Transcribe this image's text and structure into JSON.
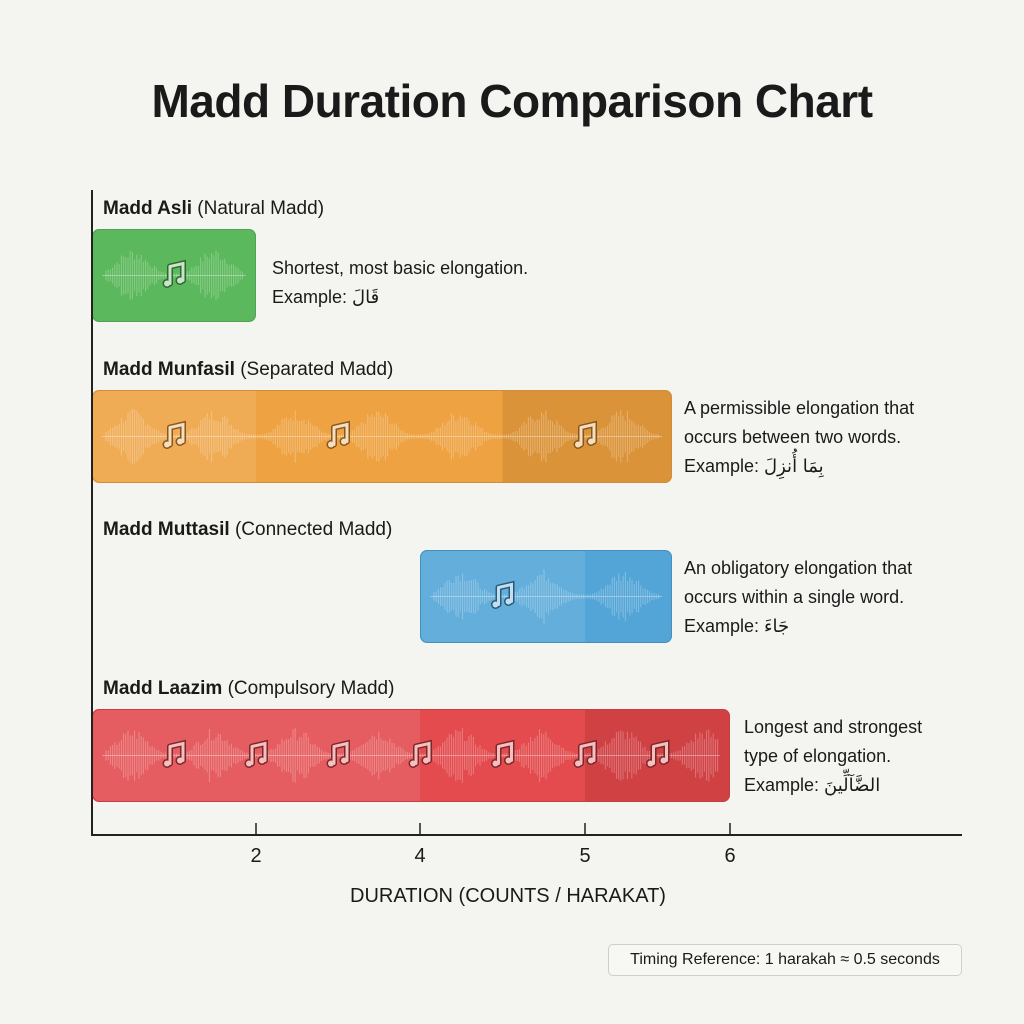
{
  "chart_data": {
    "type": "bar",
    "orientation": "horizontal",
    "title": "Madd Duration Comparison Chart",
    "xlabel": "DURATION (COUNTS / HARAKAT)",
    "x_ticks": [
      2,
      4,
      5,
      6
    ],
    "grid": false,
    "series": [
      {
        "name": "Madd Asli",
        "subtitle": "(Natural Madd)",
        "start": 0,
        "end": 2,
        "color": "#5cb85c",
        "segments": [
          [
            0,
            2
          ]
        ],
        "note_icons": [
          1
        ],
        "description": [
          "Shortest, most basic elongation."
        ],
        "example_label": "Example:",
        "example": "قَالَ"
      },
      {
        "name": "Madd Munfasil",
        "subtitle": "(Separated Madd)",
        "start": 0,
        "end": 5.6,
        "color": "#eea03e",
        "segments": [
          [
            0,
            2
          ],
          [
            2,
            4.5
          ],
          [
            4.5,
            5.6
          ]
        ],
        "note_icons": [
          1,
          3,
          5
        ],
        "description": [
          "A permissible elongation that",
          "occurs between two words."
        ],
        "example_label": "Example:",
        "example": "بِمَا أُنزِلَ"
      },
      {
        "name": "Madd Muttasil",
        "subtitle": "(Connected Madd)",
        "start": 4,
        "end": 5.6,
        "color": "#4fa3d6",
        "segments": [
          [
            4,
            5
          ],
          [
            5,
            5.6
          ]
        ],
        "note_icons": [
          4.5
        ],
        "description": [
          "An obligatory elongation that",
          "occurs within a single word."
        ],
        "example_label": "Example:",
        "example": "جَاءَ"
      },
      {
        "name": "Madd Laazim",
        "subtitle": "(Compulsory Madd)",
        "start": 0,
        "end": 6,
        "color": "#e2474a",
        "segments": [
          [
            0,
            4
          ],
          [
            4,
            5
          ],
          [
            5,
            6
          ]
        ],
        "note_icons": [
          1,
          2,
          3,
          4,
          4.5,
          5,
          5.5
        ],
        "description": [
          "Longest and strongest",
          "type of elongation."
        ],
        "example_label": "Example:",
        "example": "الضَّآلِّينَ"
      }
    ],
    "footnote": "Timing Reference: 1 harakah ≈ 0.5 seconds"
  }
}
